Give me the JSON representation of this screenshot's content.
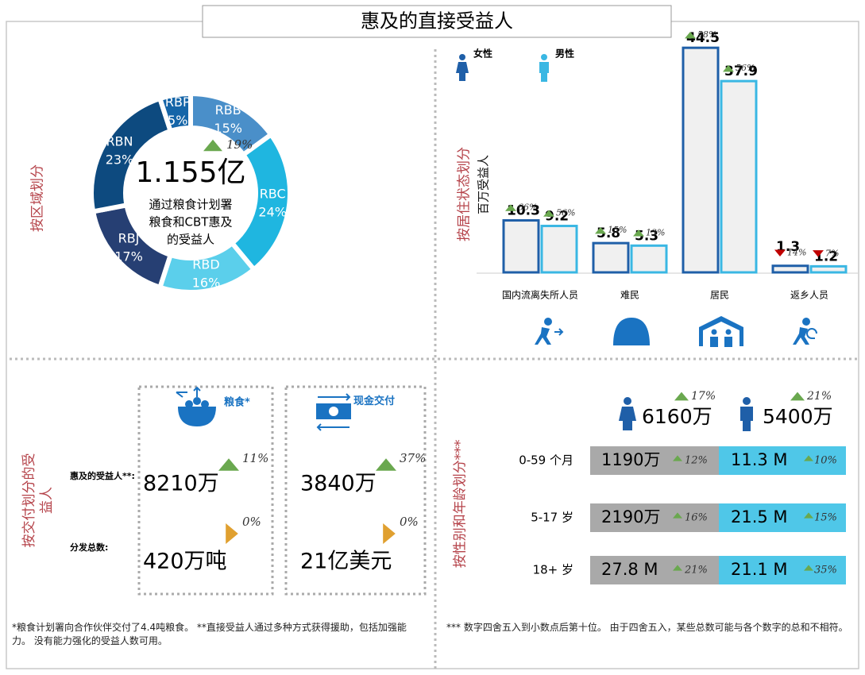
{
  "title": "惠及的直接受益人",
  "trend_colors": {
    "up": "#6aa84f",
    "down": "#c00000",
    "flat": "#e0a030"
  },
  "region": {
    "label": "按区域划分",
    "type": "pie",
    "categories": [
      "RBB",
      "RBC",
      "RBD",
      "RBJ",
      "RBN",
      "RBP"
    ],
    "values": [
      15,
      24,
      16,
      17,
      23,
      5
    ],
    "value_labels": [
      "15%",
      "24%",
      "16%",
      "17%",
      "23%",
      "5%"
    ],
    "colors": [
      "#4a8fc9",
      "#1fb6e0",
      "#5bcfeb",
      "#263f73",
      "#0d4a7f",
      "#1565a8"
    ],
    "total": "1.155亿",
    "change": "19%",
    "trend": "up",
    "caption": [
      "通过粮食计划署",
      "粮食和CBT惠及",
      "的受益人"
    ]
  },
  "status": {
    "type": "bar",
    "label": "按居住状态划分",
    "axis_label": "百万受益人",
    "categories": [
      "国内流离失所人员",
      "难民",
      "居民",
      "返乡人员"
    ],
    "ylim": [
      0,
      45
    ],
    "series": [
      {
        "name": "女性",
        "color": "#1f5fa8",
        "values": [
          10.3,
          5.8,
          44.5,
          1.3
        ],
        "changes": [
          "66%",
          "15%",
          "58%",
          "14%"
        ],
        "trends": [
          "up",
          "up",
          "up",
          "down"
        ]
      },
      {
        "name": "男性",
        "color": "#3ab7e3",
        "values": [
          9.2,
          5.3,
          37.9,
          1.2
        ],
        "changes": [
          "56%",
          "13%",
          "56%",
          "7%"
        ],
        "trends": [
          "up",
          "up",
          "up",
          "down"
        ]
      }
    ]
  },
  "delivery": {
    "label": "按交付划分的受益人",
    "row_labels": [
      "惠及的受益人**:",
      "分发总数:"
    ],
    "columns": [
      {
        "name": "粮食*",
        "reached": "8210万",
        "reached_change": "11%",
        "reached_trend": "up",
        "distributed": "420万吨",
        "distributed_change": "0%",
        "distributed_trend": "flat"
      },
      {
        "name": "现金交付",
        "reached": "3840万",
        "reached_change": "37%",
        "reached_trend": "up",
        "distributed": "21亿美元",
        "distributed_change": "0%",
        "distributed_trend": "flat"
      }
    ]
  },
  "gender_age": {
    "label": "按性别和年龄划分***",
    "female": {
      "total": "6160万",
      "change": "17%",
      "trend": "up"
    },
    "male": {
      "total": "5400万",
      "change": "21%",
      "trend": "up"
    },
    "rows": [
      {
        "age": "0-59 个月",
        "female": "1190万",
        "female_change": "12%",
        "male": "11.3 M",
        "male_change": "10%"
      },
      {
        "age": "5-17 岁",
        "female": "2190万",
        "female_change": "16%",
        "male": "21.5 M",
        "male_change": "15%"
      },
      {
        "age": "18+ 岁",
        "female": "27.8 M",
        "female_change": "21%",
        "male": "21.1 M",
        "male_change": "35%"
      }
    ]
  },
  "footnotes": [
    "*粮食计划署向合作伙伴交付了4.4吨粮食。 **直接受益人通过多种方式获得援助，包括加强能力。 没有能力强化的受益人数可用。",
    "*** 数字四舍五入到小数点后第十位。 由于四舍五入，某些总数可能与各个数字的总和不相符。"
  ]
}
